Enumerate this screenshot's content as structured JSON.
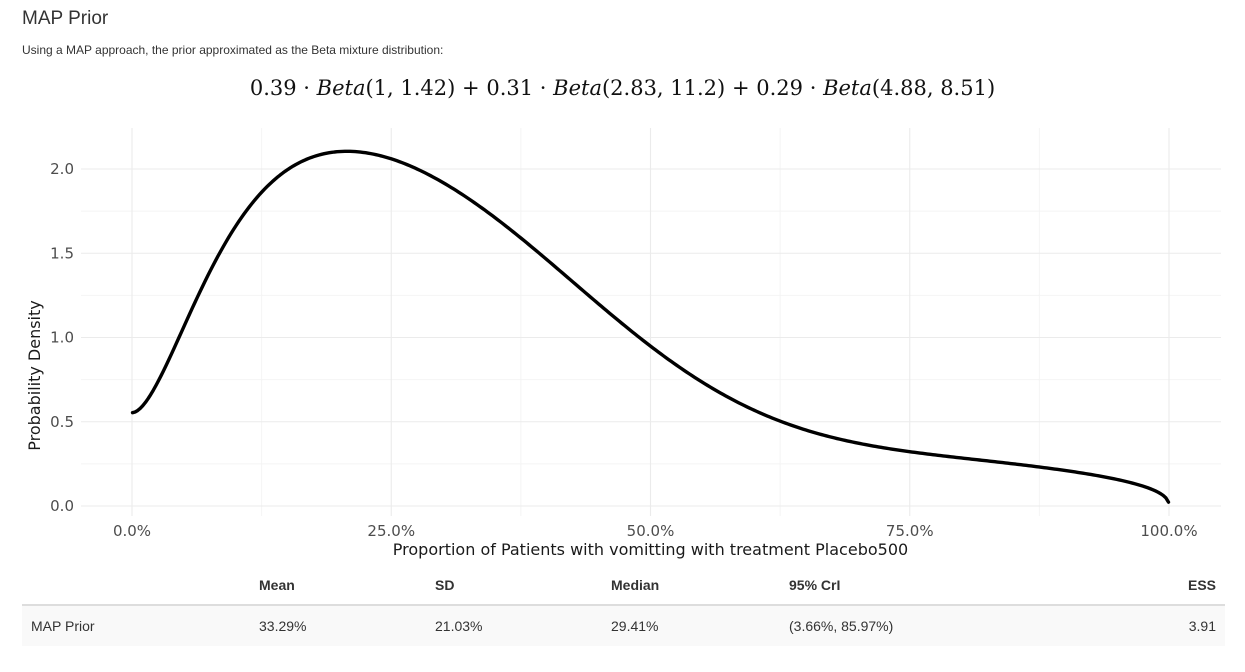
{
  "header": {
    "title": "MAP Prior",
    "subtitle": "Using a MAP approach, the prior approximated as the Beta mixture distribution:"
  },
  "formula": {
    "components": [
      {
        "weight": "0.39",
        "name": "Beta",
        "params": "(1, 1.42)"
      },
      {
        "weight": "0.31",
        "name": "Beta",
        "params": "(2.83, 11.2)"
      },
      {
        "weight": "0.29",
        "name": "Beta",
        "params": "(4.88, 8.51)"
      }
    ],
    "dot": "·",
    "plus": "+"
  },
  "chart_data": {
    "type": "line",
    "xlabel": "Proportion of Patients with vomitting with treatment Placebo500",
    "ylabel": "Probability Density",
    "xlim": [
      0,
      1
    ],
    "ylim": [
      0,
      2.2
    ],
    "x_ticks": [
      0,
      0.25,
      0.5,
      0.75,
      1.0
    ],
    "x_tick_labels": [
      "0.0%",
      "25.0%",
      "50.0%",
      "75.0%",
      "100.0%"
    ],
    "y_ticks": [
      0,
      0.5,
      1.0,
      1.5,
      2.0
    ],
    "y_tick_labels": [
      "0.0",
      "0.5",
      "1.0",
      "1.5",
      "2.0"
    ],
    "grid": true,
    "line_color": "#000000",
    "mixture": [
      {
        "w": 0.39,
        "a": 1,
        "b": 1.42
      },
      {
        "w": 0.31,
        "a": 2.83,
        "b": 11.2
      },
      {
        "w": 0.29,
        "a": 4.88,
        "b": 8.51
      }
    ]
  },
  "stats": {
    "headers": [
      "",
      "Mean",
      "SD",
      "Median",
      "95% CrI",
      "ESS"
    ],
    "rows": [
      [
        "MAP Prior",
        "33.29%",
        "21.03%",
        "29.41%",
        "(3.66%, 85.97%)",
        "3.91"
      ]
    ]
  }
}
